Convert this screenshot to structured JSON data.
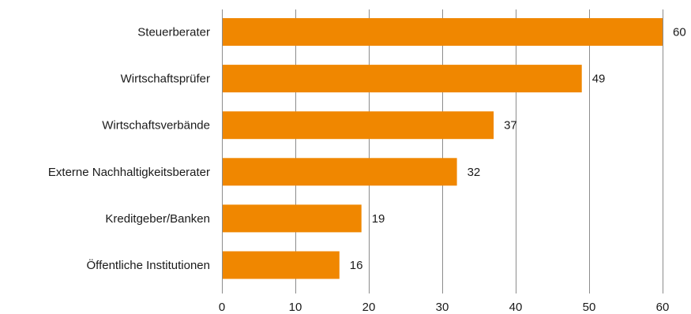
{
  "chart_data": {
    "type": "bar",
    "orientation": "horizontal",
    "categories": [
      "Steuerberater",
      "Wirtschaftsprüfer",
      "Wirtschaftsverbände",
      "Externe Nachhaltigkeitsberater",
      "Kreditgeber/Banken",
      "Öffentliche Institutionen"
    ],
    "values": [
      60,
      49,
      37,
      32,
      19,
      16
    ],
    "value_labels": [
      "60",
      "49",
      "37",
      "32",
      "19",
      "16"
    ],
    "xlim": [
      0,
      60
    ],
    "xticks": [
      0,
      10,
      20,
      30,
      40,
      50,
      60
    ],
    "xtick_labels": [
      "0",
      "10",
      "20",
      "30",
      "40",
      "50",
      "60"
    ],
    "grid": "vertical",
    "legend": "none",
    "bar_color": "#F08700",
    "grid_color": "#8C8C8C"
  }
}
